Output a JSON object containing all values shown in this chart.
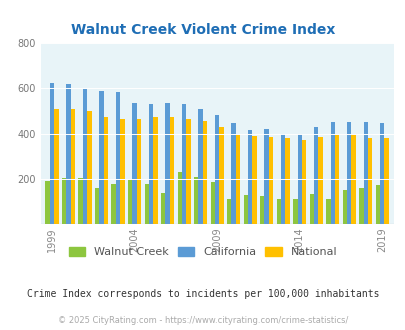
{
  "title": "Walnut Creek Violent Crime Index",
  "years": [
    1999,
    2000,
    2001,
    2002,
    2003,
    2004,
    2005,
    2006,
    2007,
    2008,
    2009,
    2010,
    2011,
    2012,
    2013,
    2014,
    2015,
    2016,
    2017,
    2018,
    2019
  ],
  "walnut_creek": [
    190,
    205,
    205,
    162,
    178,
    200,
    178,
    140,
    230,
    210,
    185,
    110,
    130,
    125,
    110,
    110,
    135,
    113,
    152,
    160,
    173
  ],
  "california": [
    625,
    620,
    595,
    590,
    585,
    533,
    530,
    535,
    530,
    510,
    480,
    445,
    415,
    420,
    400,
    398,
    430,
    450,
    450,
    450,
    445
  ],
  "national": [
    510,
    510,
    500,
    475,
    465,
    465,
    472,
    475,
    465,
    455,
    430,
    400,
    388,
    387,
    380,
    370,
    387,
    395,
    400,
    382,
    380
  ],
  "ylim": [
    0,
    800
  ],
  "yticks": [
    200,
    400,
    600,
    800
  ],
  "color_wc": "#8dc63f",
  "color_ca": "#5b9bd5",
  "color_na": "#ffc000",
  "bg_color": "#e8f4f8",
  "title_color": "#1f6eb5",
  "legend_labels": [
    "Walnut Creek",
    "California",
    "National"
  ],
  "subtitle": "Crime Index corresponds to incidents per 100,000 inhabitants",
  "copyright": "© 2025 CityRating.com - https://www.cityrating.com/crime-statistics/",
  "bar_width": 0.27,
  "xtick_years": [
    1999,
    2004,
    2009,
    2014,
    2019
  ]
}
